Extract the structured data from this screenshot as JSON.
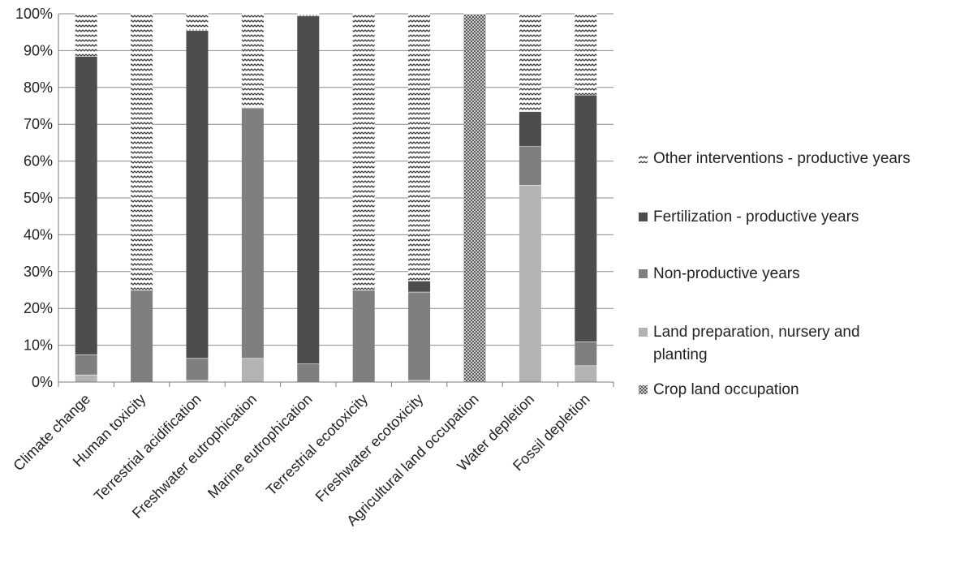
{
  "chart_data": {
    "type": "bar",
    "stacked": true,
    "percent": true,
    "categories": [
      "Climate change",
      "Human toxicity",
      "Terrestrial acidification",
      "Freshwater eutrophication",
      "Marine eutrophication",
      "Terrestrial ecotoxicity",
      "Freshwater ecotoxicity",
      "Agricultural land occupation",
      "Water depletion",
      "Fossil depletion"
    ],
    "series": [
      {
        "name": "Crop land occupation",
        "pattern": "crosshatch",
        "color": "#707070",
        "values": [
          0,
          0,
          0,
          0,
          0,
          0,
          0,
          100,
          0,
          0
        ]
      },
      {
        "name": "Land preparation, nursery and planting",
        "pattern": "solid",
        "color": "#b3b3b3",
        "values": [
          2,
          0,
          0.5,
          6.5,
          0,
          0,
          0.5,
          0,
          53.5,
          4.5
        ]
      },
      {
        "name": "Non-productive years",
        "pattern": "solid",
        "color": "#7f7f7f",
        "values": [
          5.5,
          25,
          6,
          68,
          5,
          25,
          24,
          0,
          10.5,
          6.5
        ]
      },
      {
        "name": "Fertilization - productive years",
        "pattern": "solid",
        "color": "#4d4d4d",
        "values": [
          81,
          0,
          89,
          0,
          94.5,
          0,
          3,
          0,
          9.5,
          67
        ]
      },
      {
        "name": "Other interventions - productive years",
        "pattern": "zigzag",
        "color": "#ffffff",
        "values": [
          11.5,
          75,
          4.5,
          25.5,
          0.5,
          75,
          72.5,
          0,
          26.5,
          22
        ]
      }
    ],
    "yticks": [
      "0%",
      "10%",
      "20%",
      "30%",
      "40%",
      "50%",
      "60%",
      "70%",
      "80%",
      "90%",
      "100%"
    ],
    "ylim": [
      0,
      100
    ],
    "title": "",
    "xlabel": "",
    "ylabel": "",
    "grid": true,
    "legend_position": "right",
    "legend_order": [
      "Other interventions - productive years",
      "Fertilization - productive years",
      "Non-productive years",
      "Land preparation, nursery and planting",
      "Crop land occupation"
    ]
  }
}
